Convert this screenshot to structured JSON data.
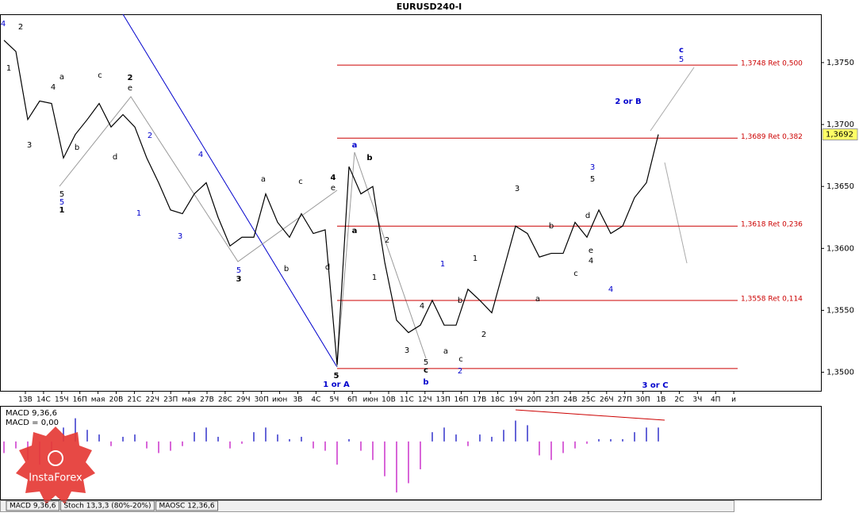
{
  "chart_data": {
    "type": "line",
    "title": "EURUSD240-I",
    "ylim": [
      1.3485,
      1.3789
    ],
    "yticks": [
      {
        "value": 1.375,
        "label": "1,3750"
      },
      {
        "value": 1.37,
        "label": "1,3700"
      },
      {
        "value": 1.365,
        "label": "1,3650"
      },
      {
        "value": 1.36,
        "label": "1,3600"
      },
      {
        "value": 1.355,
        "label": "1,3550"
      },
      {
        "value": 1.35,
        "label": "1,3500"
      }
    ],
    "time_labels": [
      "13В",
      "14С",
      "15Ч",
      "16П",
      "мая",
      "20В",
      "21С",
      "22Ч",
      "23П",
      "мая",
      "27В",
      "28С",
      "29Ч",
      "30П",
      "июн",
      "3В",
      "4С",
      "5Ч",
      "6П",
      "июн",
      "10В",
      "11С",
      "12Ч",
      "13П",
      "16П",
      "17В",
      "18С",
      "19Ч",
      "20П",
      "23П",
      "24В",
      "25С",
      "26Ч",
      "27П",
      "30П",
      "1В",
      "2С",
      "3Ч",
      "4П",
      "и"
    ],
    "series": [
      {
        "name": "EURUSD",
        "color": "#000000",
        "values": [
          1.3768,
          1.3759,
          1.3704,
          1.3719,
          1.3717,
          1.3673,
          1.3692,
          1.3704,
          1.3717,
          1.3698,
          1.3708,
          1.3698,
          1.3673,
          1.3653,
          1.3631,
          1.3628,
          1.3644,
          1.3653,
          1.3625,
          1.3602,
          1.3609,
          1.3609,
          1.3644,
          1.3621,
          1.3609,
          1.3628,
          1.3612,
          1.3615,
          1.3506,
          1.3666,
          1.3644,
          1.365,
          1.3589,
          1.3542,
          1.3532,
          1.3538,
          1.3558,
          1.3538,
          1.3538,
          1.3567,
          1.3558,
          1.3548,
          1.3583,
          1.3618,
          1.3612,
          1.3593,
          1.3596,
          1.3596,
          1.3621,
          1.3609,
          1.3631,
          1.3612,
          1.3618,
          1.3641,
          1.3653,
          1.3692
        ]
      }
    ],
    "current_price": {
      "value": 1.3692,
      "label": "1,3692"
    },
    "levels": [
      {
        "value": 1.3748,
        "label": "1,3748 Ret 0,500",
        "color": "#cc0000"
      },
      {
        "value": 1.3689,
        "label": "1,3689 Ret 0,382",
        "color": "#cc0000"
      },
      {
        "value": 1.3618,
        "label": "1,3618 Ret 0,236",
        "color": "#cc0000"
      },
      {
        "value": 1.3558,
        "label": "1,3558 Ret 0,114",
        "color": "#cc0000"
      }
    ],
    "base_line": 1.3503,
    "annotations": [
      "4",
      "2",
      "1",
      "3",
      "4",
      "a",
      "c",
      "b",
      "d",
      "5",
      "5",
      "1",
      "2",
      "e",
      "2",
      "1",
      "4",
      "3",
      "5",
      "3",
      "a",
      "c",
      "b",
      "d",
      "4",
      "e",
      "a",
      "b",
      "a",
      "2",
      "1",
      "5",
      "1 or A",
      "4",
      "3",
      "5",
      "c",
      "b",
      "1",
      "1",
      "b",
      "a",
      "c",
      "2",
      "2",
      "3",
      "b",
      "a",
      "c",
      "d",
      "e",
      "4",
      "3",
      "5",
      "4",
      "2 or B",
      "c",
      "5",
      "3 or C"
    ],
    "macd": {
      "title": "MACD 9,36,6",
      "readout": "MACD = 0,00",
      "ylim": [
        -0.0025,
        0.0015
      ],
      "positive_color": "#3333cc",
      "negative_color": "#cc33cc",
      "values": [
        -0.0005,
        -0.0003,
        -0.0008,
        -0.001,
        -0.0006,
        0.0006,
        0.001,
        0.0005,
        0.0003,
        -0.0002,
        0.0002,
        0.0003,
        -0.0003,
        -0.0005,
        -0.0004,
        -0.0002,
        0.0004,
        0.0006,
        0.0002,
        -0.0003,
        -0.0001,
        0.0004,
        0.0006,
        0.0003,
        0.0001,
        0.0002,
        -0.0003,
        -0.0004,
        -0.001,
        0.0001,
        -0.0004,
        -0.0008,
        -0.0015,
        -0.0022,
        -0.0018,
        -0.0012,
        0.0004,
        0.0006,
        0.0003,
        -0.0002,
        0.0003,
        0.0002,
        0.0005,
        0.0009,
        0.0007,
        -0.0006,
        -0.0008,
        -0.0005,
        -0.0003,
        -0.0001,
        0.0001,
        0.0001,
        0.0001,
        0.0004,
        0.0006,
        0.0006
      ]
    },
    "tabs": [
      "MACD 9,36,6",
      "Stoch 13,3,3 (80%-20%)",
      "MAOSC 12,36,6"
    ],
    "logo": "InstaForex"
  }
}
